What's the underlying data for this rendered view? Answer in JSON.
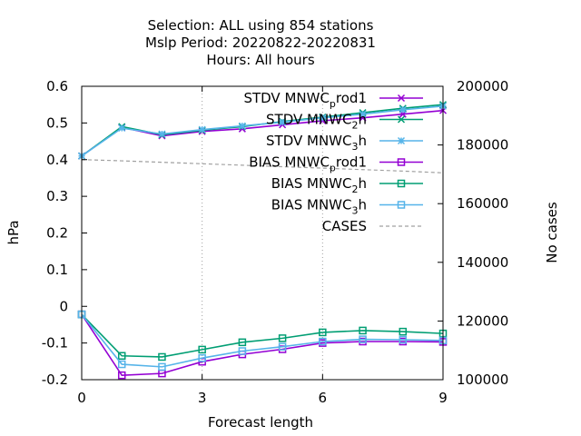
{
  "chart_data": {
    "type": "line",
    "title_lines": [
      "Selection: ALL using   854 stations",
      "Mslp   Period: 20220822-20220831",
      "Hours:  All hours"
    ],
    "xlabel": "Forecast length",
    "ylabel": "hPa",
    "y2label": "No cases",
    "xlim": [
      0,
      9
    ],
    "ylim": [
      -0.2,
      0.6
    ],
    "y2lim": [
      100000,
      200000
    ],
    "x_ticks": [
      "0",
      "3",
      "6",
      "9"
    ],
    "y_ticks": [
      "0.6",
      "0.5",
      "0.4",
      "0.3",
      "0.2",
      "0.1",
      "0",
      "-0.1",
      "-0.2"
    ],
    "y2_ticks": [
      "200000",
      "180000",
      "160000",
      "140000",
      "120000",
      "100000"
    ],
    "grid": true,
    "legend_position": "top-right",
    "x": [
      0,
      1,
      2,
      3,
      4,
      5,
      6,
      7,
      8,
      9
    ],
    "series": [
      {
        "name": "STDV MNWC_prod1",
        "legend_main": "STDV MNWC",
        "legend_sub": "p",
        "legend_rest": "rod1",
        "color": "#9400d3",
        "marker": "x",
        "axis": "y",
        "values": [
          0.41,
          0.488,
          0.465,
          0.477,
          0.484,
          0.495,
          0.506,
          0.514,
          0.524,
          0.534
        ]
      },
      {
        "name": "STDV MNWC_2h",
        "legend_main": "STDV MNWC",
        "legend_sub": "2",
        "legend_rest": "h",
        "color": "#009e73",
        "marker": "x",
        "axis": "y",
        "values": [
          0.41,
          0.49,
          0.468,
          0.48,
          0.49,
          0.504,
          0.516,
          0.528,
          0.54,
          0.55
        ]
      },
      {
        "name": "STDV MNWC_3h",
        "legend_main": "STDV MNWC",
        "legend_sub": "3",
        "legend_rest": "h",
        "color": "#56b4e9",
        "marker": "star",
        "axis": "y",
        "values": [
          0.41,
          0.486,
          0.47,
          0.482,
          0.492,
          0.502,
          0.514,
          0.524,
          0.536,
          0.546
        ]
      },
      {
        "name": "BIAS MNWC_prod1",
        "legend_main": "BIAS MNWC",
        "legend_sub": "p",
        "legend_rest": "rod1",
        "color": "#9400d3",
        "marker": "square",
        "axis": "y",
        "values": [
          -0.022,
          -0.188,
          -0.183,
          -0.151,
          -0.131,
          -0.117,
          -0.1,
          -0.096,
          -0.096,
          -0.097
        ]
      },
      {
        "name": "BIAS MNWC_2h",
        "legend_main": "BIAS MNWC",
        "legend_sub": "2",
        "legend_rest": "h",
        "color": "#009e73",
        "marker": "square",
        "axis": "y",
        "values": [
          -0.022,
          -0.135,
          -0.138,
          -0.118,
          -0.098,
          -0.087,
          -0.071,
          -0.066,
          -0.069,
          -0.074
        ]
      },
      {
        "name": "BIAS MNWC_3h",
        "legend_main": "BIAS MNWC",
        "legend_sub": "3",
        "legend_rest": "h",
        "color": "#56b4e9",
        "marker": "square",
        "axis": "y",
        "values": [
          -0.022,
          -0.158,
          -0.165,
          -0.141,
          -0.122,
          -0.11,
          -0.096,
          -0.09,
          -0.091,
          -0.093
        ]
      },
      {
        "name": "CASES",
        "legend_main": "CASES",
        "legend_sub": "",
        "legend_rest": "",
        "color": "#a0a0a0",
        "marker": "none",
        "axis": "y2",
        "dashed": true,
        "values": [
          175000,
          174600,
          174100,
          173600,
          173100,
          172600,
          172100,
          171600,
          171100,
          170500
        ]
      }
    ]
  }
}
